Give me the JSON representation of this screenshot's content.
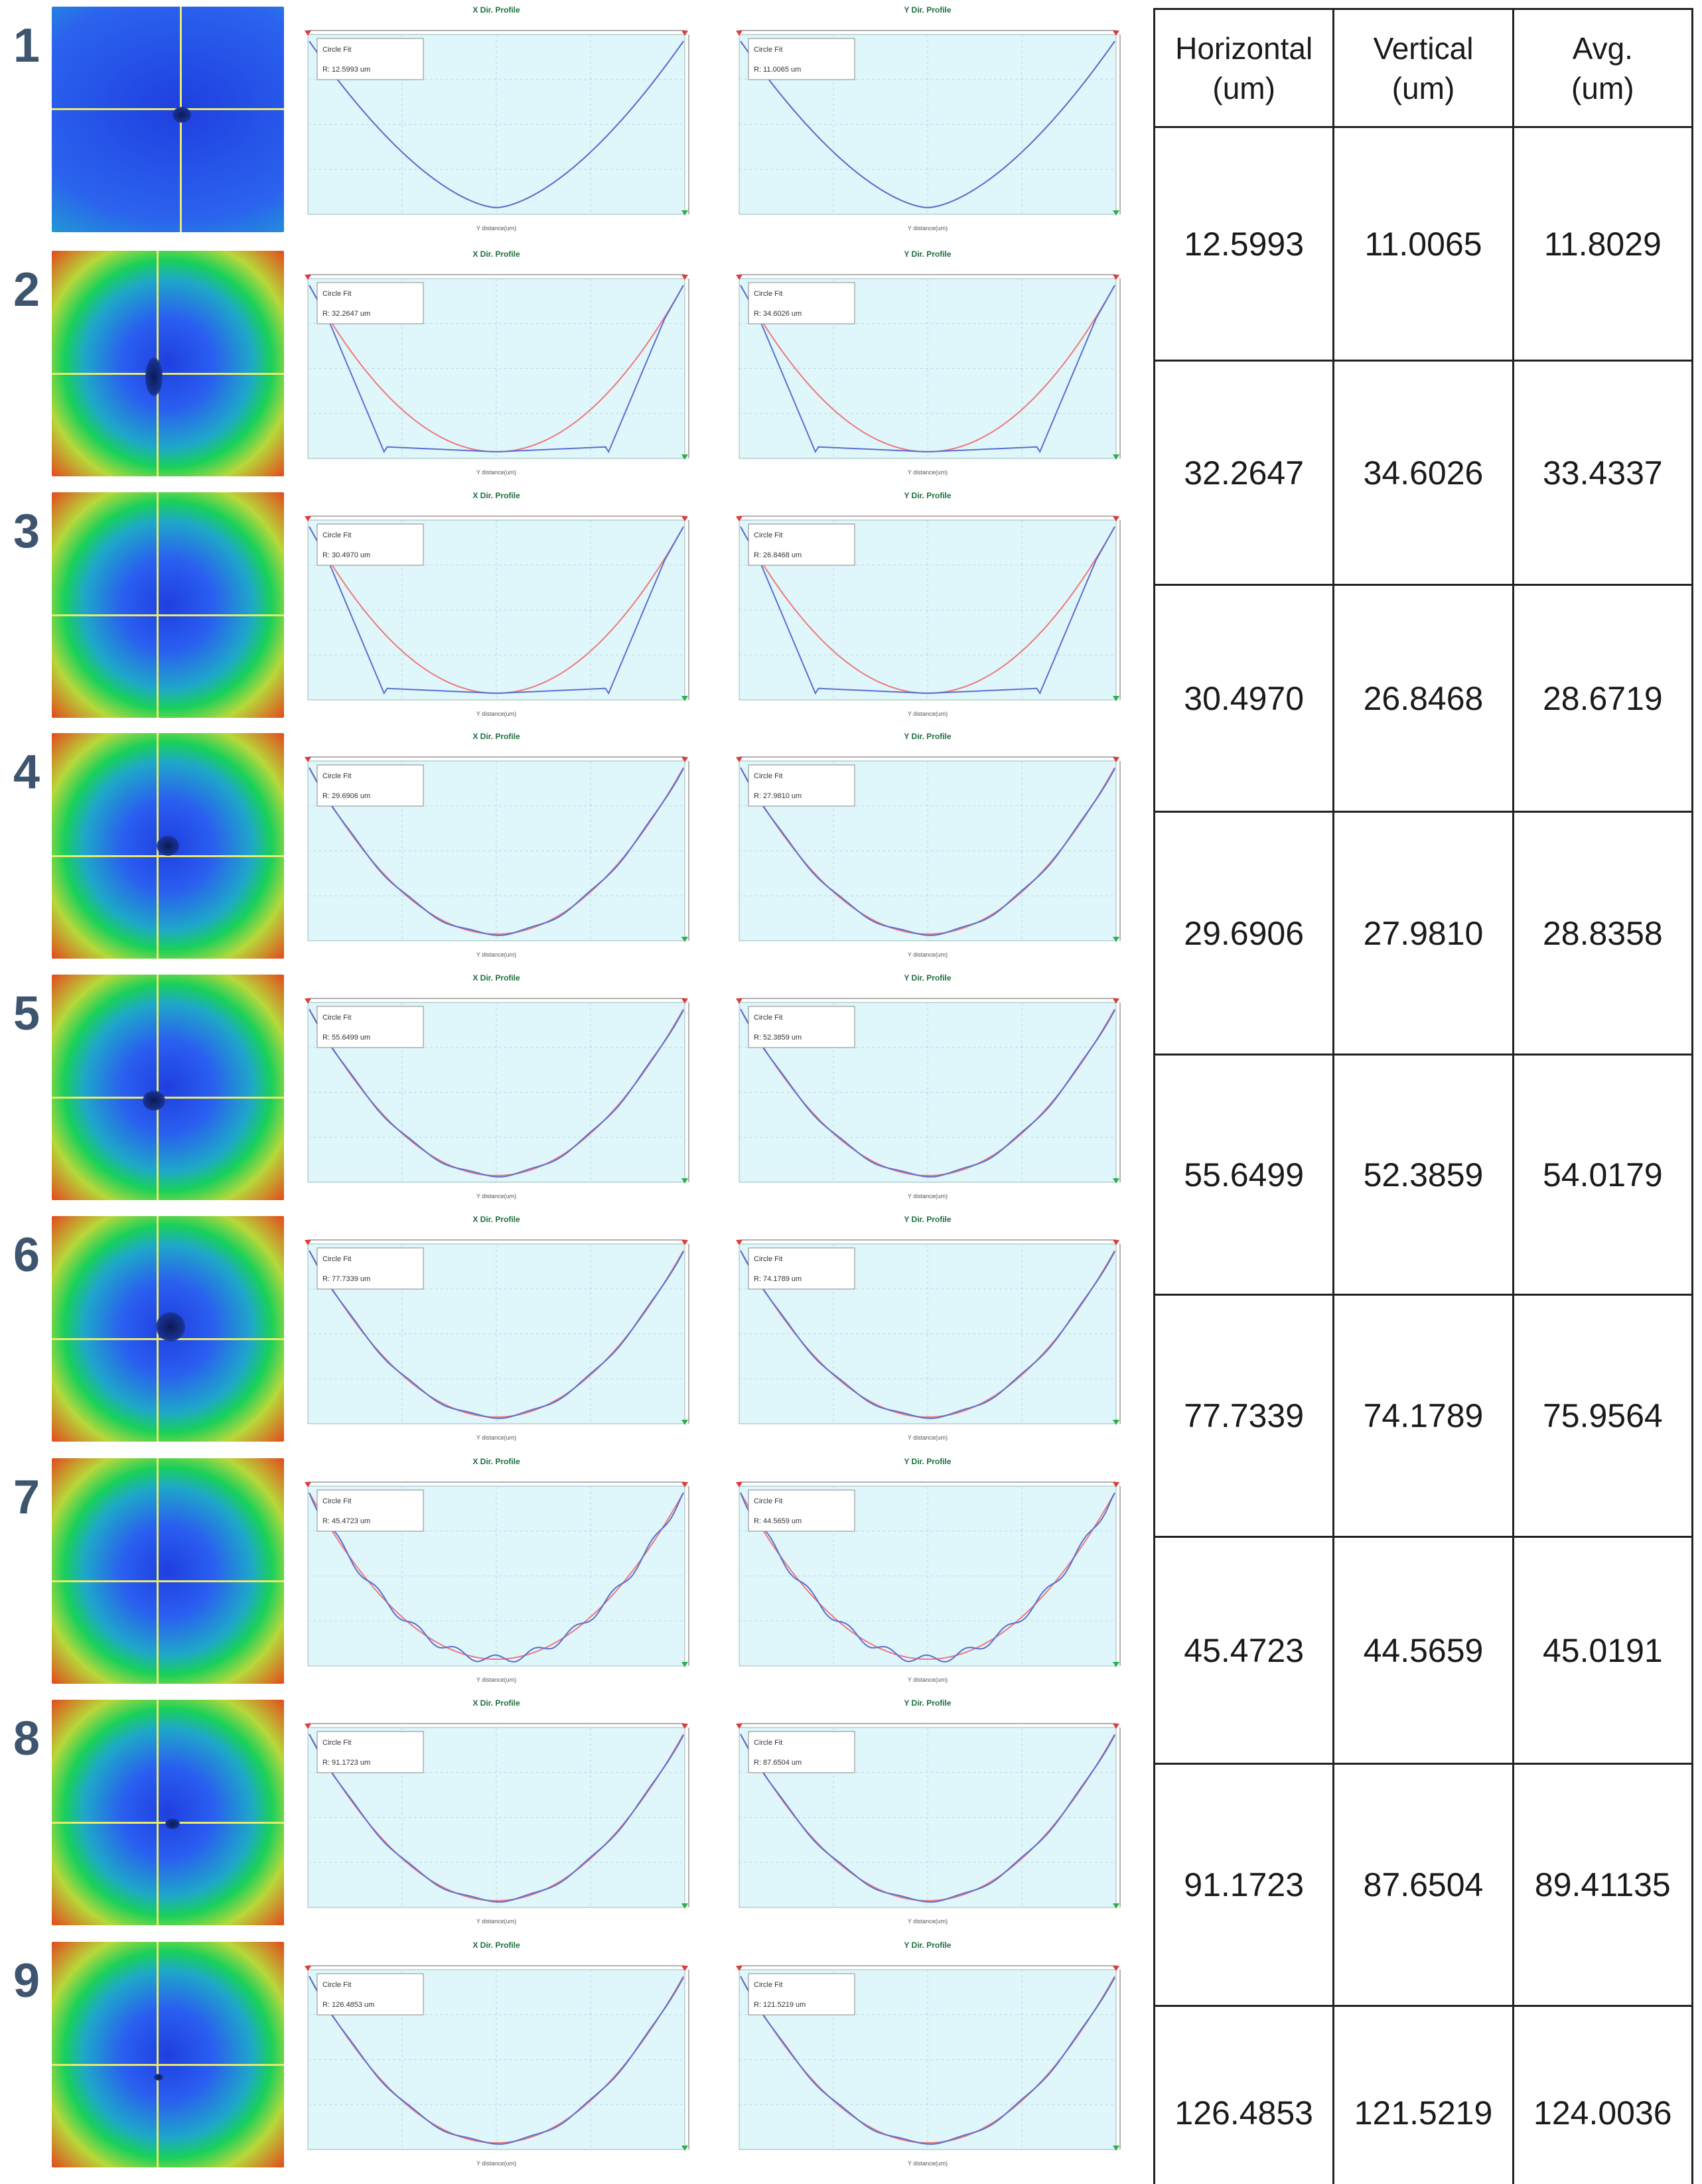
{
  "table": {
    "headers": [
      "Horizontal\n(um)",
      "Vertical\n(um)",
      "Avg.\n(um)"
    ],
    "rows": [
      [
        "12.5993",
        "11.0065",
        "11.8029"
      ],
      [
        "32.2647",
        "34.6026",
        "33.4337"
      ],
      [
        "30.4970",
        "26.8468",
        "28.6719"
      ],
      [
        "29.6906",
        "27.9810",
        "28.8358"
      ],
      [
        "55.6499",
        "52.3859",
        "54.0179"
      ],
      [
        "77.7339",
        "74.1789",
        "75.9564"
      ],
      [
        "45.4723",
        "44.5659",
        "45.0191"
      ],
      [
        "91.1723",
        "87.6504",
        "89.41135"
      ],
      [
        "126.4853",
        "121.5219",
        "124.0036"
      ]
    ]
  },
  "profiles": {
    "x_title": "X Dir. Profile",
    "y_title": "Y Dir. Profile",
    "fit_label": "Circle Fit",
    "axis_label": "Y distance(um)",
    "rows": [
      {
        "label": "1",
        "x_fit_text": "R: 12.5993 um",
        "y_fit_text": "R: 11.0065 um",
        "shape": "v"
      },
      {
        "label": "2",
        "x_fit_text": "R: 32.2647 um",
        "y_fit_text": "R: 34.6026 um",
        "shape": "flat"
      },
      {
        "label": "3",
        "x_fit_text": "R: 30.4970 um",
        "y_fit_text": "R: 26.8468 um",
        "shape": "flat"
      },
      {
        "label": "4",
        "x_fit_text": "R: 29.6906 um",
        "y_fit_text": "R: 27.9810 um",
        "shape": "bowl"
      },
      {
        "label": "5",
        "x_fit_text": "R: 55.6499 um",
        "y_fit_text": "R: 52.3859 um",
        "shape": "bowl"
      },
      {
        "label": "6",
        "x_fit_text": "R: 77.7339 um",
        "y_fit_text": "R: 74.1789 um",
        "shape": "bowl"
      },
      {
        "label": "7",
        "x_fit_text": "R: 45.4723 um",
        "y_fit_text": "R: 44.5659 um",
        "shape": "wavy"
      },
      {
        "label": "8",
        "x_fit_text": "R: 91.1723 um",
        "y_fit_text": "R: 87.6504 um",
        "shape": "bowl"
      },
      {
        "label": "9",
        "x_fit_text": "R: 126.4853 um",
        "y_fit_text": "R: 121.5219 um",
        "shape": "bowl"
      }
    ]
  },
  "colors": {
    "plot_bg": "#dff6fb",
    "measured_line": "#5a6fd0",
    "fit_line": "#f07878",
    "row_label": "#3e5570",
    "heat_center": "#1f3fe0",
    "heat_mid": "#19d05a",
    "heat_edge": "#e24a1d"
  }
}
